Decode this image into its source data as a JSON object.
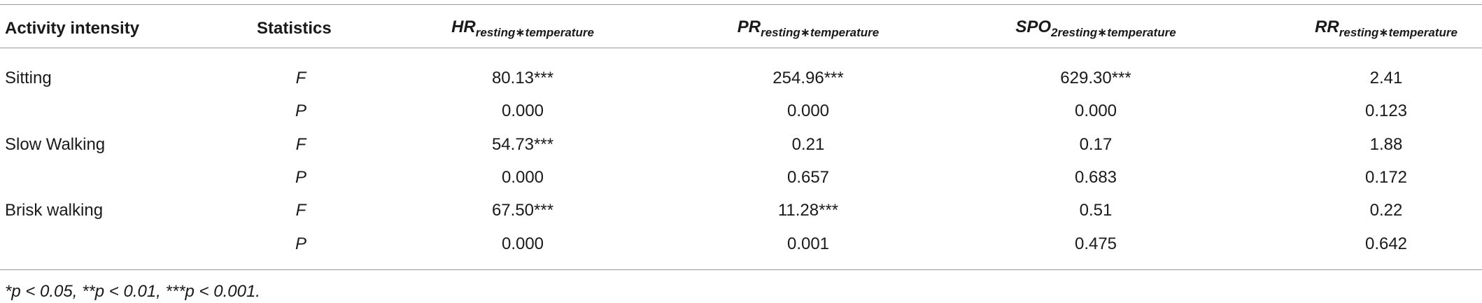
{
  "table": {
    "columns": [
      {
        "main": "Activity intensity"
      },
      {
        "main": "Statistics"
      },
      {
        "main": "HR",
        "sub": "resting∗temperature"
      },
      {
        "main": "PR",
        "sub": "resting∗temperature"
      },
      {
        "main": "SPO",
        "sub": "2resting∗temperature"
      },
      {
        "main": "RR",
        "sub": "resting∗temperature"
      }
    ],
    "groups": [
      {
        "activity": "Sitting",
        "rows": [
          {
            "statistic": "F",
            "values": [
              "80.13***",
              "254.96***",
              "629.30***",
              "2.41"
            ]
          },
          {
            "statistic": "P",
            "values": [
              "0.000",
              "0.000",
              "0.000",
              "0.123"
            ]
          }
        ]
      },
      {
        "activity": "Slow Walking",
        "rows": [
          {
            "statistic": "F",
            "values": [
              "54.73***",
              "0.21",
              "0.17",
              "1.88"
            ]
          },
          {
            "statistic": "P",
            "values": [
              "0.000",
              "0.657",
              "0.683",
              "0.172"
            ]
          }
        ]
      },
      {
        "activity": "Brisk walking",
        "rows": [
          {
            "statistic": "F",
            "values": [
              "67.50***",
              "11.28***",
              "0.51",
              "0.22"
            ]
          },
          {
            "statistic": "P",
            "values": [
              "0.000",
              "0.001",
              "0.475",
              "0.642"
            ]
          }
        ]
      }
    ],
    "footnote": "*p < 0.05, **p < 0.01, ***p < 0.001."
  }
}
